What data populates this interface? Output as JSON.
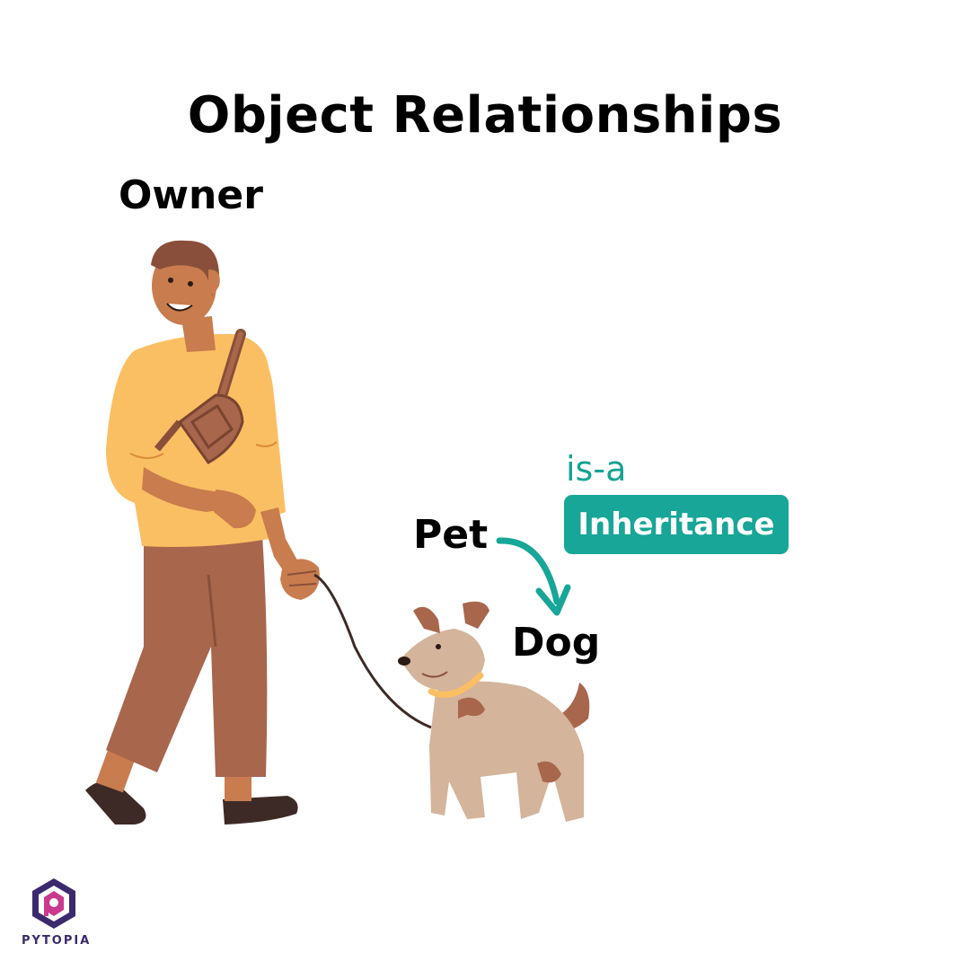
{
  "title": "Object Relationships",
  "labels": {
    "owner": "Owner",
    "pet": "Pet",
    "dog": "Dog"
  },
  "relation": {
    "type_label": "is-a",
    "name": "Inheritance"
  },
  "brand": {
    "name": "PYTOPIA"
  },
  "colors": {
    "accent": "#17a697",
    "shirt": "#fbbf63",
    "pants": "#a8664c",
    "skin": "#c97c4e",
    "dog": "#d4b49a"
  }
}
